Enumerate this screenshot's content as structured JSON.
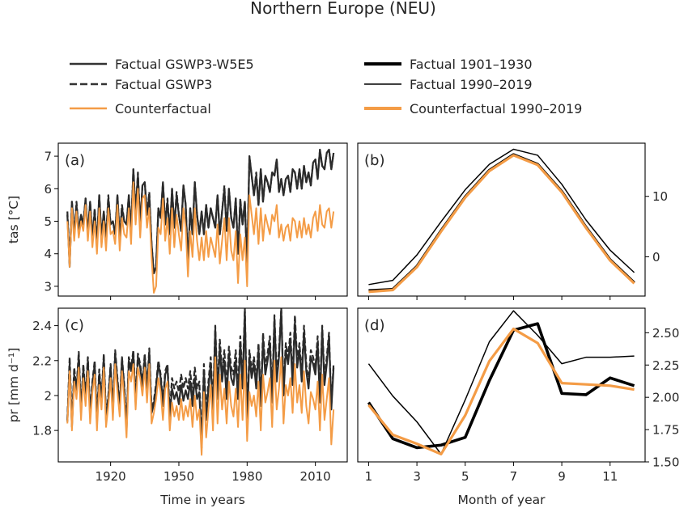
{
  "title": "Northern Europe (NEU)",
  "legend": [
    {
      "label": "Factual GSWP3-W5E5",
      "color": "#333333",
      "style": "solid",
      "width": 2.5
    },
    {
      "label": "Factual GSWP3",
      "color": "#333333",
      "style": "dashed",
      "width": 2.5
    },
    {
      "label": "Counterfactual",
      "color": "#f49c46",
      "style": "solid",
      "width": 2.5
    },
    {
      "label": "Factual 1901–1930",
      "color": "#000000",
      "style": "solid",
      "width": 4
    },
    {
      "label": "Factual 1990–2019",
      "color": "#000000",
      "style": "solid",
      "width": 1.5
    },
    {
      "label": "Counterfactual 1990–2019",
      "color": "#f49c46",
      "style": "solid",
      "width": 4
    }
  ],
  "chart_data": [
    {
      "panel": "(a)",
      "type": "line",
      "ylabel": "tas [°C]",
      "xlabel": "",
      "xlim": [
        1897,
        2024
      ],
      "ylim": [
        2.7,
        7.4
      ],
      "yticks": [
        3,
        4,
        5,
        6,
        7
      ],
      "xticks": [
        1920,
        1950,
        1980,
        2010
      ],
      "xtick_labels_shown": false,
      "grid": false,
      "x_start": 1901,
      "series": [
        {
          "key": "factual_w5e5",
          "values": [
            5.2,
            3.6,
            5.6,
            4.6,
            5.5,
            4.7,
            5.2,
            4.9,
            5.7,
            4.6,
            5.6,
            4.5,
            5.3,
            4.3,
            5.8,
            4.5,
            5.3,
            4.4,
            5.7,
            4.9,
            5.0,
            4.6,
            5.8,
            4.5,
            5.4,
            5.0,
            4.9,
            5.8,
            4.7,
            6.6,
            5.3,
            6.4,
            4.9,
            6.1,
            6.2,
            5.2,
            5.8,
            4.3,
            3.4,
            3.6,
            5.4,
            5.1,
            6.2,
            4.9,
            5.6,
            4.6,
            6.0,
            4.8,
            5.8,
            5.2,
            4.7,
            6.1,
            5.5,
            3.7,
            5.4,
            4.6,
            6.2,
            5.2,
            4.6,
            5.3,
            4.6,
            5.5,
            4.8,
            5.4,
            5.1,
            4.8,
            5.8,
            4.6,
            5.3,
            6.0,
            4.7,
            6.0,
            5.1,
            4.8,
            5.7,
            4.0,
            5.6,
            4.9,
            5.6,
            3.6,
            7.0,
            6.4,
            5.8,
            6.4,
            5.5,
            6.6,
            5.6,
            6.4,
            6.2,
            5.9,
            6.5,
            6.4,
            6.9,
            5.9,
            6.3,
            5.8,
            6.3,
            6.4,
            5.9,
            6.6,
            6.5,
            6.0,
            6.6,
            6.0,
            6.7,
            6.2,
            6.5,
            6.1,
            6.8,
            6.9,
            6.3,
            7.2,
            6.7,
            6.6,
            7.1,
            7.2,
            6.6,
            7.1
          ]
        },
        {
          "key": "factual_gswp3",
          "values": [
            5.3,
            3.7,
            5.6,
            4.6,
            5.6,
            4.7,
            5.2,
            4.9,
            5.7,
            4.6,
            5.6,
            4.5,
            5.4,
            4.3,
            5.8,
            4.5,
            5.3,
            4.5,
            5.8,
            4.9,
            5.0,
            4.6,
            5.8,
            4.5,
            5.5,
            5.0,
            4.9,
            5.8,
            4.7,
            6.6,
            5.3,
            6.5,
            4.9,
            6.1,
            6.2,
            5.2,
            5.9,
            4.3,
            3.4,
            3.6,
            5.4,
            5.1,
            6.2,
            4.9,
            5.7,
            4.6,
            6.0,
            4.8,
            5.9,
            5.2,
            4.7,
            6.1,
            5.5,
            3.7,
            5.4,
            4.6,
            6.2,
            5.2,
            4.6,
            5.3,
            4.6,
            5.5,
            4.8,
            5.4,
            5.1,
            4.8,
            5.8,
            4.6,
            5.3,
            6.1,
            4.7,
            6.0,
            5.1,
            4.8,
            5.7,
            4.0,
            5.7,
            4.9,
            5.6,
            3.6,
            7.0,
            6.4,
            5.8,
            6.5,
            5.5,
            6.6,
            5.6,
            6.4,
            6.2,
            5.9,
            6.5,
            6.4,
            6.9,
            5.9,
            6.3,
            5.8,
            6.3,
            6.4,
            5.9,
            6.6,
            6.5,
            6.0,
            6.6,
            6.0,
            6.7,
            6.2,
            6.5,
            6.1,
            6.8,
            6.9,
            6.3,
            7.2,
            6.7,
            6.6,
            7.1,
            7.2,
            6.6,
            7.1
          ]
        },
        {
          "key": "counterfactual",
          "values": [
            5.0,
            3.6,
            5.4,
            4.4,
            5.3,
            4.5,
            5.0,
            4.7,
            5.5,
            4.4,
            5.3,
            4.2,
            5.0,
            4.0,
            5.4,
            4.2,
            5.0,
            4.1,
            5.4,
            4.6,
            4.7,
            4.3,
            5.5,
            4.1,
            5.1,
            4.6,
            4.5,
            5.4,
            4.3,
            6.2,
            4.9,
            6.0,
            4.5,
            5.7,
            5.8,
            4.8,
            5.4,
            3.9,
            2.8,
            3.0,
            4.8,
            4.6,
            5.7,
            4.4,
            5.1,
            4.0,
            5.4,
            4.2,
            5.2,
            4.6,
            4.1,
            5.4,
            4.8,
            3.3,
            4.7,
            3.9,
            5.4,
            4.4,
            3.8,
            4.5,
            3.8,
            4.7,
            3.9,
            4.5,
            4.2,
            3.9,
            4.9,
            3.7,
            4.4,
            5.1,
            3.8,
            5.1,
            4.1,
            3.8,
            4.7,
            3.1,
            4.6,
            3.8,
            4.5,
            3.0,
            5.8,
            5.2,
            4.6,
            5.4,
            4.3,
            5.4,
            4.4,
            5.2,
            4.9,
            4.6,
            5.2,
            5.0,
            5.5,
            4.5,
            4.9,
            4.4,
            4.8,
            4.9,
            4.4,
            5.1,
            5.0,
            4.5,
            5.0,
            4.5,
            5.1,
            4.6,
            4.9,
            4.5,
            5.1,
            5.3,
            4.7,
            5.5,
            4.9,
            4.8,
            5.3,
            5.4,
            4.8,
            5.3
          ]
        }
      ]
    },
    {
      "panel": "(b)",
      "type": "line",
      "ylabel": "",
      "xlabel": "",
      "xlim": [
        0.55,
        12.45
      ],
      "ylim": [
        -6.5,
        18.8
      ],
      "yticks": [
        0,
        10
      ],
      "xticks": [
        1,
        3,
        5,
        7,
        9,
        11
      ],
      "xtick_labels_shown": false,
      "yaxis_side": "right",
      "x": [
        1,
        2,
        3,
        4,
        5,
        6,
        7,
        8,
        9,
        10,
        11,
        12
      ],
      "series": [
        {
          "key": "factual_1901_1930",
          "values": [
            -5.6,
            -5.4,
            -1.6,
            4.3,
            9.9,
            14.3,
            16.9,
            15.3,
            10.8,
            4.9,
            -0.5,
            -4.3
          ]
        },
        {
          "key": "factual_1990_2019",
          "values": [
            -4.6,
            -3.9,
            0.3,
            5.8,
            11.1,
            15.3,
            17.8,
            16.8,
            12.0,
            6.1,
            1.1,
            -2.6
          ]
        },
        {
          "key": "counterfactual_1990_2019",
          "values": [
            -5.8,
            -5.5,
            -1.7,
            4.2,
            9.8,
            14.2,
            16.8,
            15.2,
            10.7,
            4.8,
            -0.6,
            -4.4
          ]
        }
      ]
    },
    {
      "panel": "(c)",
      "type": "line",
      "ylabel": "pr [mm d⁻¹]",
      "xlabel": "Time in years",
      "xlim": [
        1897,
        2024
      ],
      "ylim": [
        1.62,
        2.5
      ],
      "yticks": [
        1.8,
        2.0,
        2.2,
        2.4
      ],
      "xticks": [
        1920,
        1950,
        1980,
        2010
      ],
      "xtick_labels_shown": true,
      "x_start": 1901,
      "series": [
        {
          "key": "factual_w5e5",
          "values": [
            1.85,
            2.18,
            1.82,
            2.12,
            2.02,
            2.22,
            1.9,
            2.15,
            1.98,
            2.2,
            1.88,
            2.06,
            2.18,
            1.84,
            2.12,
            1.96,
            2.22,
            1.86,
            1.98,
            2.16,
            1.9,
            2.24,
            2.08,
            1.92,
            2.21,
            2.04,
            1.8,
            2.2,
            2.14,
            2.24,
            1.96,
            2.22,
            2.16,
            2.05,
            2.22,
            2.02,
            2.25,
            1.9,
            1.95,
            2.05,
            2.18,
            2.1,
            1.94,
            2.12,
            2.16,
            1.88,
            2.04,
            1.98,
            2.02,
            1.95,
            2.06,
            1.97,
            2.03,
            1.98,
            2.08,
            1.94,
            2.1,
            1.98,
            2.02,
            1.7,
            2.14,
            1.86,
            2.04,
            2.18,
            1.9,
            2.38,
            1.98,
            2.28,
            2.08,
            2.2,
            1.98,
            2.24,
            2.1,
            2.06,
            2.2,
            1.98,
            2.3,
            2.04,
            2.48,
            1.85,
            2.22,
            2.1,
            2.18,
            2.04,
            2.26,
            1.94,
            2.32,
            2.12,
            2.2,
            2.3,
            1.96,
            2.44,
            2.08,
            2.22,
            2.49,
            2.0,
            2.26,
            2.18,
            2.32,
            2.06,
            2.42,
            2.16,
            2.26,
            2.08,
            2.36,
            2.14,
            2.04,
            2.22,
            2.18,
            2.12,
            2.3,
            1.96,
            2.38,
            2.06,
            2.18,
            2.34,
            1.92,
            2.16
          ]
        },
        {
          "key": "factual_gswp3",
          "values": [
            1.86,
            2.22,
            1.84,
            2.16,
            2.04,
            2.25,
            1.92,
            2.18,
            2.0,
            2.22,
            1.9,
            2.08,
            2.2,
            1.86,
            2.15,
            1.98,
            2.24,
            1.88,
            2.0,
            2.18,
            1.92,
            2.26,
            2.1,
            1.94,
            2.22,
            2.06,
            1.82,
            2.22,
            2.16,
            2.26,
            1.98,
            2.24,
            2.18,
            2.07,
            2.24,
            2.04,
            2.27,
            1.92,
            1.97,
            2.07,
            2.2,
            2.12,
            1.96,
            2.14,
            2.18,
            1.9,
            2.1,
            2.04,
            2.08,
            2.02,
            2.12,
            2.04,
            2.1,
            2.04,
            2.14,
            2.0,
            2.16,
            2.04,
            2.08,
            1.72,
            2.18,
            1.9,
            2.08,
            2.22,
            1.94,
            2.4,
            2.04,
            2.32,
            2.14,
            2.26,
            2.04,
            2.28,
            2.16,
            2.12,
            2.26,
            2.04,
            2.34,
            2.08,
            2.5,
            1.88,
            2.26,
            2.14,
            2.22,
            2.08,
            2.3,
            1.98,
            2.36,
            2.16,
            2.24,
            2.34,
            2.0,
            2.46,
            2.12,
            2.26,
            2.5,
            2.04,
            2.3,
            2.22,
            2.36,
            2.1,
            2.46,
            2.2,
            2.3,
            2.12,
            2.4,
            2.18,
            2.08,
            2.26,
            2.22,
            2.16,
            2.34,
            2.0,
            2.4,
            2.1,
            2.22,
            2.36,
            1.94,
            2.18
          ]
        },
        {
          "key": "counterfactual",
          "values": [
            1.84,
            2.14,
            1.8,
            2.08,
            1.98,
            2.16,
            1.86,
            2.1,
            1.94,
            2.14,
            1.84,
            2.02,
            2.12,
            1.8,
            2.06,
            1.92,
            2.16,
            1.82,
            1.94,
            2.1,
            1.86,
            2.18,
            2.02,
            1.88,
            2.14,
            1.98,
            1.76,
            2.14,
            2.08,
            2.18,
            1.92,
            2.16,
            2.1,
            2.0,
            2.16,
            1.96,
            2.18,
            1.84,
            1.9,
            1.98,
            2.1,
            2.02,
            1.86,
            2.04,
            2.08,
            1.8,
            1.96,
            1.88,
            1.94,
            1.86,
            1.98,
            1.86,
            1.94,
            1.88,
            1.98,
            1.82,
            2.0,
            1.86,
            1.92,
            1.66,
            2.02,
            1.76,
            1.92,
            2.06,
            1.8,
            2.22,
            1.84,
            2.12,
            1.92,
            2.04,
            1.84,
            2.08,
            1.94,
            1.88,
            2.04,
            1.82,
            2.12,
            1.86,
            2.2,
            1.74,
            2.02,
            1.94,
            2.0,
            1.88,
            2.08,
            1.8,
            2.12,
            1.96,
            2.02,
            2.1,
            1.82,
            2.2,
            1.92,
            2.04,
            2.22,
            1.84,
            2.06,
            2.0,
            2.1,
            1.9,
            2.18,
            1.96,
            2.06,
            1.9,
            2.14,
            1.94,
            1.84,
            2.02,
            1.98,
            1.92,
            2.08,
            1.8,
            2.12,
            1.86,
            1.98,
            2.1,
            1.72,
            1.92
          ]
        }
      ]
    },
    {
      "panel": "(d)",
      "type": "line",
      "ylabel": "",
      "xlabel": "Month of year",
      "xlim": [
        0.55,
        12.45
      ],
      "ylim": [
        1.5,
        2.69
      ],
      "yticks": [
        1.5,
        1.75,
        2.0,
        2.25,
        2.5
      ],
      "ytick_labels": [
        "1.50",
        "1.75",
        "2.00",
        "2.25",
        "2.50"
      ],
      "xticks": [
        1,
        3,
        5,
        7,
        9,
        11
      ],
      "xtick_labels_shown": true,
      "yaxis_side": "right",
      "x": [
        1,
        2,
        3,
        4,
        5,
        6,
        7,
        8,
        9,
        10,
        11,
        12
      ],
      "series": [
        {
          "key": "factual_1901_1930",
          "values": [
            1.96,
            1.68,
            1.61,
            1.63,
            1.69,
            2.13,
            2.52,
            2.57,
            2.03,
            2.02,
            2.15,
            2.09
          ]
        },
        {
          "key": "factual_1990_2019",
          "values": [
            2.26,
            2.01,
            1.81,
            1.56,
            1.98,
            2.43,
            2.67,
            2.48,
            2.26,
            2.31,
            2.31,
            2.32
          ]
        },
        {
          "key": "counterfactual_1990_2019",
          "values": [
            1.94,
            1.71,
            1.64,
            1.56,
            1.86,
            2.28,
            2.53,
            2.42,
            2.11,
            2.1,
            2.09,
            2.06
          ]
        }
      ]
    }
  ]
}
